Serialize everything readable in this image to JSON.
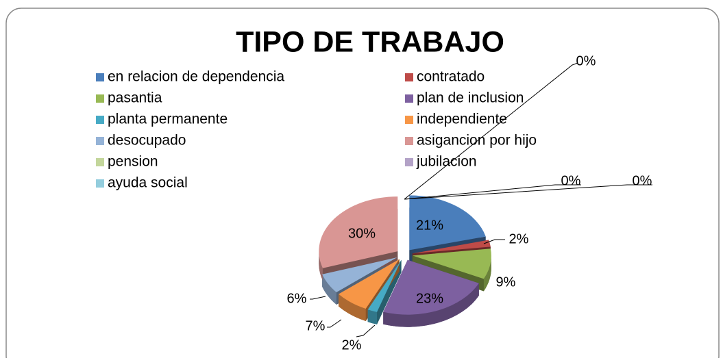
{
  "chart_data": {
    "type": "pie",
    "title": "TIPO DE TRABAJO",
    "categories": [
      "en relacion de dependencia",
      "contratado",
      "pasantia",
      "plan de inclusion",
      "planta permanente",
      "independiente",
      "desocupado",
      "asigancion por hijo",
      "pension",
      "jubilacion",
      "ayuda social"
    ],
    "values": [
      21,
      2,
      9,
      23,
      2,
      7,
      6,
      30,
      0,
      0,
      0
    ],
    "value_labels": [
      "21%",
      "2%",
      "9%",
      "23%",
      "2%",
      "7%",
      "6%",
      "30%",
      "0%",
      "0%",
      "0%"
    ],
    "colors": [
      "#4a7ebb",
      "#be4b48",
      "#98b954",
      "#7d60a0",
      "#46aac5",
      "#f79646",
      "#95b3d7",
      "#d99694",
      "#c3d69b",
      "#b3a2c7",
      "#93cddd"
    ],
    "legend": "top"
  }
}
